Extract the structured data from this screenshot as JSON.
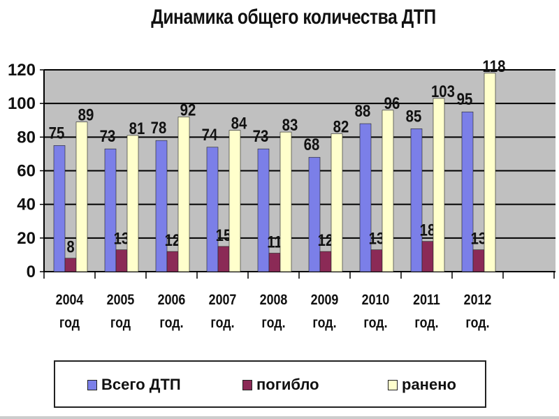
{
  "chart_data": {
    "type": "bar",
    "title": "Динамика общего количества ДТП",
    "categories": [
      [
        "2004",
        "год"
      ],
      [
        "2005",
        "год"
      ],
      [
        "2006",
        "год."
      ],
      [
        "2007",
        "год."
      ],
      [
        "2008",
        "год."
      ],
      [
        "2009",
        "год."
      ],
      [
        "2010",
        "год."
      ],
      [
        "2011",
        "год."
      ],
      [
        "2012",
        "год."
      ]
    ],
    "series": [
      {
        "name": "Всего ДТП",
        "color": "#7b7fe8",
        "values": [
          75,
          73,
          78,
          74,
          73,
          68,
          88,
          85,
          95
        ]
      },
      {
        "name": "погибло",
        "color": "#8b2a56",
        "values": [
          8,
          13,
          12,
          15,
          11,
          12,
          13,
          18,
          13
        ]
      },
      {
        "name": "ранено",
        "color": "#ffffcc",
        "values": [
          89,
          81,
          92,
          84,
          83,
          82,
          96,
          103,
          118
        ]
      }
    ],
    "ylim": [
      0,
      120
    ],
    "yticks": [
      0,
      20,
      40,
      60,
      80,
      100,
      120
    ],
    "grid": true,
    "plot_background": "#c0c0c0",
    "legend_position": "bottom"
  }
}
